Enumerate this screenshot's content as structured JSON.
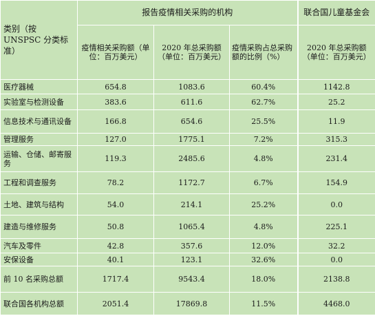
{
  "header": {
    "category_label": "类别（按 UNSPSC 分类标准）",
    "group_reporting": "报告疫情相关采购的机构",
    "group_unicef": "联合国儿童基金会",
    "col_covid_spend": "疫情相关采购额（单位：百万美元）",
    "col_total_2020": "2020 年总采购额（单位：百万美元）",
    "col_share": "疫情采购占总采购额的比例（%）",
    "col_unicef_2020": "2020 年总采购额（单位：百万美元）"
  },
  "rows": [
    {
      "category": "医疗器械",
      "covid": "654.8",
      "total": "1083.6",
      "share": "60.4%",
      "unicef": "1142.8"
    },
    {
      "category": "实验室与检测设备",
      "covid": "383.6",
      "total": "611.6",
      "share": "62.7%",
      "unicef": "25.2"
    },
    {
      "category": "信息技术与通讯设备",
      "covid": "166.8",
      "total": "654.6",
      "share": "25.5%",
      "unicef": "11.9"
    },
    {
      "category": "管理服务",
      "covid": "127.0",
      "total": "1775.1",
      "share": "7.2%",
      "unicef": "315.3"
    },
    {
      "category": "运输、仓储、邮寄服务",
      "covid": "119.3",
      "total": "2485.6",
      "share": "4.8%",
      "unicef": "231.4"
    },
    {
      "category": "工程和调查服务",
      "covid": "78.2",
      "total": "1172.7",
      "share": "6.7%",
      "unicef": "154.9"
    },
    {
      "category": "土地、建筑与结构",
      "covid": "54.0",
      "total": "214.1",
      "share": "25.2%",
      "unicef": "0.0"
    },
    {
      "category": "建造与维修服务",
      "covid": "50.8",
      "total": "1065.4",
      "share": "4.8%",
      "unicef": "225.1"
    },
    {
      "category": "汽车及零件",
      "covid": "42.8",
      "total": "357.6",
      "share": "12.0%",
      "unicef": "32.2"
    },
    {
      "category": "安保设备",
      "covid": "40.1",
      "total": "123.1",
      "share": "32.6%",
      "unicef": "0.0"
    },
    {
      "category": "前 10 名采购总额",
      "covid": "1717.4",
      "total": "9543.4",
      "share": "18.0%",
      "unicef": "2138.8"
    },
    {
      "category": "联合国各机构总额",
      "covid": "2051.4",
      "total": "17869.8",
      "share": "11.5%",
      "unicef": "4468.0"
    }
  ]
}
